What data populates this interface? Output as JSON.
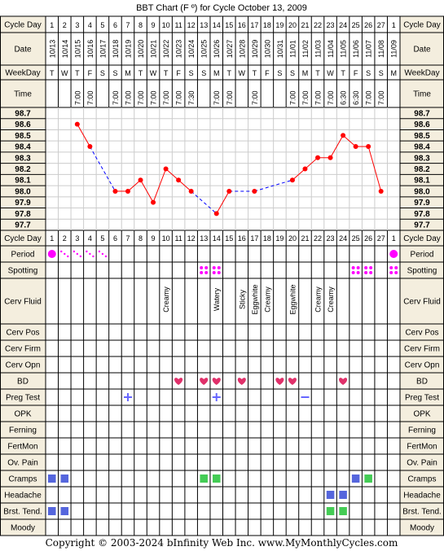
{
  "title": "BBT Chart (F º) for Cycle October 13, 2009",
  "copyright": "Copyright © 2003-2024 bInfinity Web Inc.    www.MyMonthlyCycles.com",
  "row_labels": {
    "cycle_day": "Cycle Day",
    "date": "Date",
    "weekday": "WeekDay",
    "time": "Time",
    "period": "Period",
    "spotting": "Spotting",
    "cerv_fluid": "Cerv Fluid",
    "cerv_pos": "Cerv Pos",
    "cerv_firm": "Cerv Firm",
    "cerv_opn": "Cerv Opn",
    "bd": "BD",
    "preg_test": "Preg Test",
    "opk": "OPK",
    "ferning": "Ferning",
    "fertmon": "FertMon",
    "ov_pain": "Ov. Pain",
    "cramps": "Cramps",
    "headache": "Headache",
    "brst_tend": "Brst. Tend.",
    "moody": "Moody"
  },
  "columns": {
    "cycle_day": [
      "1",
      "2",
      "3",
      "4",
      "5",
      "6",
      "7",
      "8",
      "9",
      "10",
      "11",
      "12",
      "13",
      "14",
      "15",
      "16",
      "17",
      "18",
      "19",
      "20",
      "21",
      "22",
      "23",
      "24",
      "25",
      "26",
      "27",
      "1"
    ],
    "date": [
      "10/13",
      "10/14",
      "10/15",
      "10/16",
      "10/17",
      "10/18",
      "10/19",
      "10/20",
      "10/21",
      "10/22",
      "10/23",
      "10/24",
      "10/25",
      "10/26",
      "10/27",
      "10/28",
      "10/29",
      "10/30",
      "10/31",
      "11/01",
      "11/02",
      "11/03",
      "11/04",
      "11/05",
      "11/06",
      "11/07",
      "11/08",
      "11/09"
    ],
    "weekday": [
      "T",
      "W",
      "T",
      "F",
      "S",
      "S",
      "M",
      "T",
      "W",
      "T",
      "F",
      "S",
      "S",
      "M",
      "T",
      "W",
      "T",
      "F",
      "S",
      "S",
      "M",
      "T",
      "W",
      "T",
      "F",
      "S",
      "S",
      "M"
    ],
    "time": [
      "",
      "",
      "7:00",
      "7:00",
      "",
      "7:00",
      "7:00",
      "7:00",
      "7:00",
      "7:00",
      "7:00",
      "7:30",
      "",
      "7:00",
      "7:00",
      "",
      "7:00",
      "",
      "",
      "7:00",
      "7:00",
      "7:00",
      "7:00",
      "6:30",
      "6:30",
      "7:00",
      "7:00",
      ""
    ],
    "cerv_fluid": [
      "",
      "",
      "",
      "",
      "",
      "",
      "",
      "",
      "",
      "Creamy",
      "",
      "",
      "",
      "Watery",
      "",
      "Sticky",
      "Eggwhite",
      "Creamy",
      "",
      "Eggwhite",
      "",
      "Creamy",
      "Creamy",
      "",
      "",
      "",
      "",
      ""
    ]
  },
  "temp_axis": [
    "98.7",
    "98.6",
    "98.5",
    "98.4",
    "98.3",
    "98.2",
    "98.1",
    "98.0",
    "97.9",
    "97.8",
    "97.7"
  ],
  "chart_data": {
    "type": "line",
    "title": "BBT Chart (F º) for Cycle October 13, 2009",
    "x": [
      "10/13",
      "10/14",
      "10/15",
      "10/16",
      "10/17",
      "10/18",
      "10/19",
      "10/20",
      "10/21",
      "10/22",
      "10/23",
      "10/24",
      "10/25",
      "10/26",
      "10/27",
      "10/28",
      "10/29",
      "10/30",
      "10/31",
      "11/01",
      "11/02",
      "11/03",
      "11/04",
      "11/05",
      "11/06",
      "11/07",
      "11/08",
      "11/09"
    ],
    "series": [
      {
        "values": [
          null,
          null,
          98.6,
          98.4,
          null,
          98.0,
          98.0,
          98.1,
          97.9,
          98.2,
          98.1,
          98.0,
          null,
          97.8,
          98.0,
          null,
          98.0,
          null,
          null,
          98.1,
          98.2,
          98.3,
          98.3,
          98.5,
          98.4,
          98.4,
          98.0,
          null
        ]
      }
    ],
    "ylim": [
      97.7,
      98.7
    ],
    "colors": {
      "line": "#ff0000",
      "gap": "#0000ff"
    }
  },
  "markers": {
    "period": [
      "full",
      "dots",
      "dots",
      "dots",
      "dots",
      "",
      "",
      "",
      "",
      "",
      "",
      "",
      "",
      "",
      "",
      "",
      "",
      "",
      "",
      "",
      "",
      "",
      "",
      "",
      "",
      "",
      "",
      "full"
    ],
    "spotting": [
      0,
      0,
      0,
      0,
      0,
      0,
      0,
      0,
      0,
      0,
      0,
      0,
      1,
      1,
      0,
      0,
      0,
      0,
      0,
      0,
      0,
      0,
      0,
      0,
      1,
      1,
      0,
      1
    ],
    "bd": [
      0,
      0,
      0,
      0,
      0,
      0,
      0,
      0,
      0,
      0,
      1,
      0,
      1,
      1,
      0,
      1,
      0,
      0,
      1,
      1,
      0,
      0,
      0,
      1,
      0,
      0,
      0,
      0
    ],
    "preg_test": [
      "",
      "",
      "",
      "",
      "",
      "",
      "+",
      "",
      "",
      "",
      "",
      "",
      "",
      "+",
      "",
      "",
      "",
      "",
      "",
      "",
      "-",
      "",
      "",
      "",
      "",
      "",
      "",
      ""
    ],
    "cramps": [
      "blue",
      "blue",
      "",
      "",
      "",
      "",
      "",
      "",
      "",
      "",
      "",
      "",
      "green",
      "green",
      "",
      "",
      "",
      "",
      "",
      "",
      "",
      "",
      "",
      "",
      "blue",
      "green",
      "",
      ""
    ],
    "headache": [
      "",
      "",
      "",
      "",
      "",
      "",
      "",
      "",
      "",
      "",
      "",
      "",
      "",
      "",
      "",
      "",
      "",
      "",
      "",
      "",
      "",
      "",
      "blue",
      "blue",
      "",
      "",
      "",
      ""
    ],
    "brst_tend": [
      "blue",
      "blue",
      "",
      "",
      "",
      "",
      "",
      "",
      "",
      "",
      "",
      "",
      "",
      "",
      "",
      "",
      "",
      "",
      "",
      "",
      "",
      "",
      "green",
      "green",
      "",
      "",
      "",
      ""
    ]
  },
  "colors": {
    "header_bg": "#f4eede",
    "grid": "#000000",
    "period": "#ff00ff",
    "heart": "#e0306a",
    "blue_sq": "#5566dd",
    "green_sq": "#44cc55",
    "sign": "#6666ff"
  }
}
